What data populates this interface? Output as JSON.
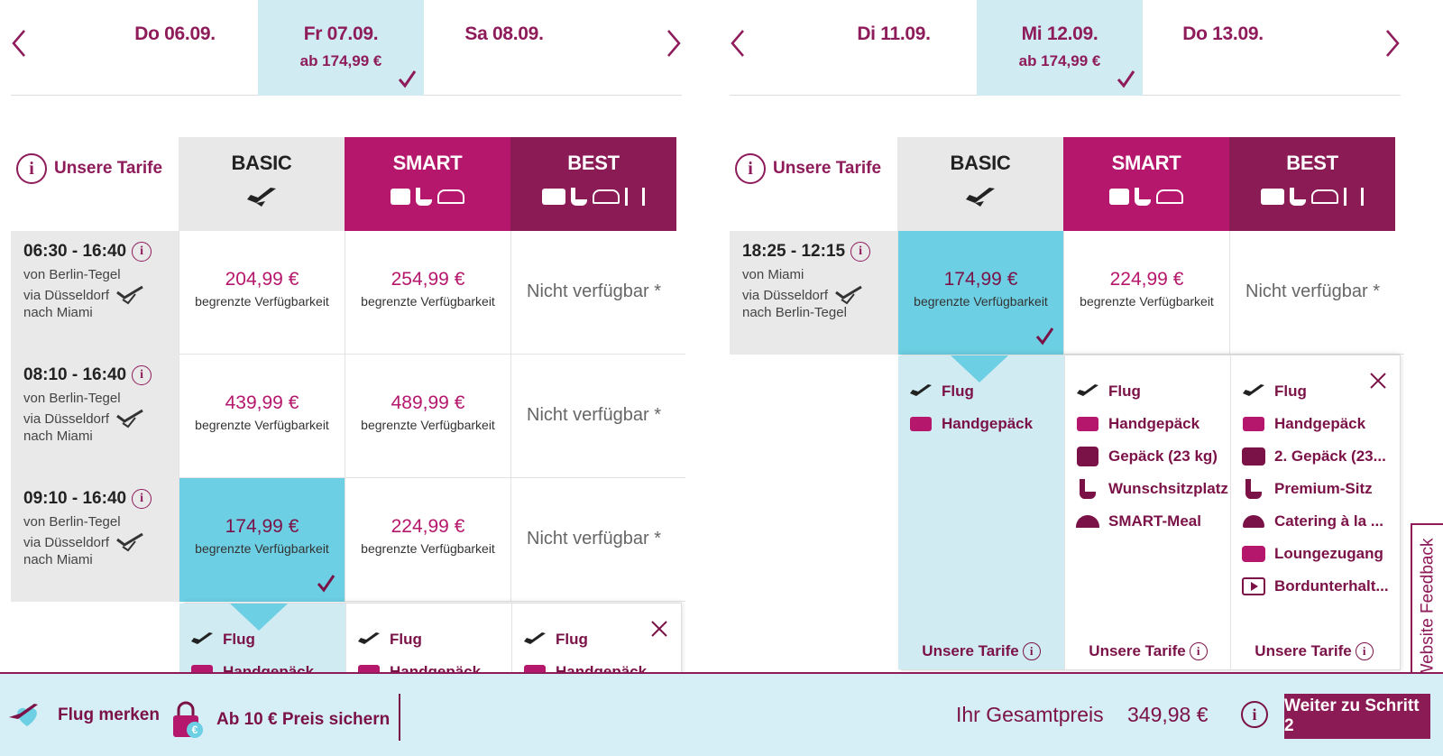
{
  "outbound": {
    "days": [
      {
        "date": "Do 06.09.",
        "price": ""
      },
      {
        "date": "Fr 07.09.",
        "price": "ab 174,99 €"
      },
      {
        "date": "Sa 08.09.",
        "price": ""
      }
    ],
    "flights": [
      {
        "time": "06:30 - 16:40",
        "from": "von Berlin-Tegel",
        "via": "via Düsseldorf",
        "to": "nach Miami",
        "basic": {
          "price": "204,99 €",
          "avail": "begrenzte Verfügbarkeit"
        },
        "smart": {
          "price": "254,99 €",
          "avail": "begrenzte Verfügbarkeit"
        },
        "best": "Nicht verfügbar *"
      },
      {
        "time": "08:10 - 16:40",
        "from": "von Berlin-Tegel",
        "via": "via Düsseldorf",
        "to": "nach Miami",
        "basic": {
          "price": "439,99 €",
          "avail": "begrenzte Verfügbarkeit"
        },
        "smart": {
          "price": "489,99 €",
          "avail": "begrenzte Verfügbarkeit"
        },
        "best": "Nicht verfügbar *"
      },
      {
        "time": "09:10 - 16:40",
        "from": "von Berlin-Tegel",
        "via": "via Düsseldorf",
        "to": "nach Miami",
        "basic": {
          "price": "174,99 €",
          "avail": "begrenzte Verfügbarkeit"
        },
        "smart": {
          "price": "224,99 €",
          "avail": "begrenzte Verfügbarkeit"
        },
        "best": "Nicht verfügbar *"
      }
    ],
    "detail": {
      "basic": [
        "Flug",
        "Handgepäck"
      ],
      "smart": [
        "Flug",
        "Handgepäck"
      ],
      "best": [
        "Flug",
        "Handgepäck"
      ]
    }
  },
  "return": {
    "days": [
      {
        "date": "Di 11.09.",
        "price": ""
      },
      {
        "date": "Mi 12.09.",
        "price": "ab 174,99 €"
      },
      {
        "date": "Do 13.09.",
        "price": ""
      }
    ],
    "flights": [
      {
        "time": "18:25 - 12:15",
        "from": "von Miami",
        "via": "via Düsseldorf",
        "to": "nach Berlin-Tegel",
        "basic": {
          "price": "174,99 €",
          "avail": "begrenzte Verfügbarkeit"
        },
        "smart": {
          "price": "224,99 €",
          "avail": "begrenzte Verfügbarkeit"
        },
        "best": "Nicht verfügbar *"
      }
    ],
    "detail": {
      "basic": [
        "Flug",
        "Handgepäck"
      ],
      "smart": [
        "Flug",
        "Handgepäck",
        "Gepäck (23 kg)",
        "Wunschsitzplatz",
        "SMART-Meal"
      ],
      "best": [
        "Flug",
        "Handgepäck",
        "2. Gepäck (23...",
        "Premium-Sitz",
        "Catering à la ...",
        "Loungezugang",
        "Bordunterhalt..."
      ],
      "footer": "Unsere Tarife"
    }
  },
  "tariffs": {
    "info_label": "Unsere Tarife",
    "basic": "BASIC",
    "smart": "SMART",
    "best": "BEST"
  },
  "bottom": {
    "remember": "Flug merken",
    "secure": "Ab 10 € Preis sichern",
    "total_label": "Ihr Gesamtpreis",
    "total_value": "349,98 €",
    "next": "Weiter zu Schritt 2"
  },
  "feedback": "Website Feedback",
  "colors": {
    "accent": "#b5176c",
    "dark": "#8b1b55",
    "selected": "#6ccfe3",
    "light": "#d0ebf2"
  }
}
